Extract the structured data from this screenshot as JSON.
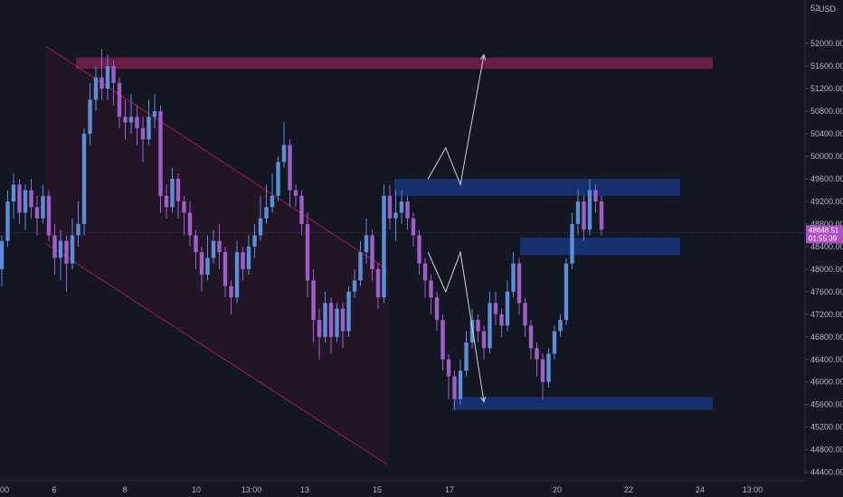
{
  "chart_data": {
    "type": "candlestick",
    "currency": "USD",
    "currency_prefix": "52",
    "y_range": [
      44250,
      52450
    ],
    "y_ticks": [
      "52000.00",
      "51600.00",
      "51200.00",
      "50800.00",
      "50400.00",
      "50000.00",
      "49600.00",
      "49200.00",
      "48800.00",
      "48400.00",
      "48000.00",
      "47600.00",
      "47200.00",
      "46800.00",
      "46400.00",
      "46000.00",
      "45600.00",
      "45200.00",
      "44800.00",
      "44400.00"
    ],
    "x_ticks": [
      "00",
      "6",
      "8",
      "10",
      "13:00",
      "13",
      "15",
      "17",
      "20",
      "22",
      "24",
      "13:00"
    ],
    "current_price": "48648.51",
    "countdown": "01:55:39",
    "colors": {
      "background": "#131722",
      "up": "#5b8fd8",
      "down": "#a05fc8",
      "channel": "#c2185b",
      "resistance_zone": "#7a1e4e",
      "demand_zone": "#1a3a8a",
      "price_tag": "#b04fc4"
    },
    "zones": [
      {
        "name": "resistance",
        "y_low": 51550,
        "y_high": 51750
      },
      {
        "name": "supply",
        "y_low": 49300,
        "y_high": 49600
      },
      {
        "name": "support",
        "y_low": 48250,
        "y_high": 48560
      },
      {
        "name": "demand",
        "y_low": 45510,
        "y_high": 45730
      }
    ],
    "candles": [
      [
        48000,
        48500,
        47700,
        48600
      ],
      [
        48500,
        49200,
        48400,
        49400
      ],
      [
        49200,
        49500,
        48900,
        49700
      ],
      [
        49500,
        49000,
        48800,
        49600
      ],
      [
        49000,
        49400,
        48700,
        49500
      ],
      [
        49400,
        49100,
        48900,
        49600
      ],
      [
        49100,
        48900,
        48600,
        49300
      ],
      [
        48900,
        49300,
        48800,
        49500
      ],
      [
        49300,
        48600,
        48500,
        49400
      ],
      [
        48600,
        48200,
        47900,
        48800
      ],
      [
        48200,
        48500,
        47800,
        48700
      ],
      [
        48500,
        48100,
        47600,
        48600
      ],
      [
        48100,
        48600,
        48000,
        48900
      ],
      [
        48600,
        48800,
        48400,
        49200
      ],
      [
        48800,
        50400,
        48600,
        50500
      ],
      [
        50400,
        51000,
        50200,
        51300
      ],
      [
        51000,
        51400,
        50800,
        51600
      ],
      [
        51400,
        51200,
        51000,
        51900
      ],
      [
        51200,
        51600,
        51000,
        51800
      ],
      [
        51600,
        51300,
        50900,
        51700
      ],
      [
        51300,
        50700,
        50500,
        51400
      ],
      [
        50700,
        50600,
        50300,
        51000
      ],
      [
        50600,
        50700,
        50400,
        51100
      ],
      [
        50700,
        50500,
        50200,
        50900
      ],
      [
        50500,
        50300,
        49900,
        50700
      ],
      [
        50300,
        50700,
        50200,
        51000
      ],
      [
        50700,
        50800,
        50500,
        51100
      ],
      [
        50800,
        49300,
        49000,
        50900
      ],
      [
        49300,
        49100,
        48900,
        49500
      ],
      [
        49100,
        49600,
        49000,
        49800
      ],
      [
        49600,
        49200,
        48900,
        49700
      ],
      [
        49200,
        49000,
        48600,
        49300
      ],
      [
        49000,
        48600,
        48400,
        49200
      ],
      [
        48600,
        48300,
        48000,
        48700
      ],
      [
        48300,
        47900,
        47600,
        48400
      ],
      [
        47900,
        48200,
        47800,
        48600
      ],
      [
        48200,
        48500,
        48100,
        48700
      ],
      [
        48500,
        48300,
        48000,
        48800
      ],
      [
        48300,
        47700,
        47500,
        48400
      ],
      [
        47700,
        47500,
        47200,
        47800
      ],
      [
        47500,
        48300,
        47400,
        48500
      ],
      [
        48300,
        48000,
        47800,
        48400
      ],
      [
        48000,
        48400,
        47900,
        48600
      ],
      [
        48400,
        48600,
        48200,
        48800
      ],
      [
        48600,
        48900,
        48500,
        49300
      ],
      [
        48900,
        49100,
        48800,
        49500
      ],
      [
        49100,
        49300,
        49000,
        49700
      ],
      [
        49300,
        49900,
        49200,
        50000
      ],
      [
        49900,
        50200,
        49800,
        50600
      ],
      [
        50200,
        49400,
        49100,
        50300
      ],
      [
        49400,
        49300,
        49100,
        49500
      ],
      [
        49300,
        48800,
        48600,
        49400
      ],
      [
        48800,
        47800,
        47500,
        49000
      ],
      [
        47800,
        47100,
        46700,
        48000
      ],
      [
        47100,
        46800,
        46400,
        47300
      ],
      [
        46800,
        47400,
        46700,
        47600
      ],
      [
        47400,
        46800,
        46500,
        47500
      ],
      [
        46800,
        47300,
        46700,
        47400
      ],
      [
        47300,
        46900,
        46600,
        47400
      ],
      [
        46900,
        47600,
        46800,
        47700
      ],
      [
        47600,
        47800,
        47500,
        48000
      ],
      [
        47800,
        48300,
        47700,
        48500
      ],
      [
        48300,
        48600,
        48100,
        48900
      ],
      [
        48600,
        48000,
        47800,
        48700
      ],
      [
        48000,
        47500,
        47300,
        48100
      ],
      [
        47500,
        49300,
        47400,
        49500
      ],
      [
        49300,
        48900,
        48700,
        49500
      ],
      [
        48900,
        49000,
        48500,
        49400
      ],
      [
        49000,
        49200,
        48800,
        49400
      ],
      [
        49200,
        48900,
        48700,
        49300
      ],
      [
        48900,
        48600,
        48400,
        49000
      ],
      [
        48600,
        48100,
        47900,
        48700
      ],
      [
        48100,
        47800,
        47500,
        48200
      ],
      [
        47800,
        47500,
        47200,
        47900
      ],
      [
        47500,
        47100,
        46900,
        47600
      ],
      [
        47100,
        46400,
        46200,
        47200
      ],
      [
        46400,
        46100,
        45700,
        46500
      ],
      [
        46100,
        45700,
        45500,
        46200
      ],
      [
        45700,
        46200,
        45600,
        46400
      ],
      [
        46200,
        46700,
        46100,
        46900
      ],
      [
        46700,
        47100,
        46600,
        47300
      ],
      [
        47100,
        46900,
        46700,
        47200
      ],
      [
        46900,
        46600,
        46400,
        47000
      ],
      [
        46600,
        47400,
        46500,
        47600
      ],
      [
        47400,
        47200,
        47000,
        47600
      ],
      [
        47200,
        47000,
        46800,
        47300
      ],
      [
        47000,
        47600,
        46900,
        47800
      ],
      [
        47600,
        48100,
        47500,
        48300
      ],
      [
        48100,
        47400,
        47200,
        48200
      ],
      [
        47400,
        47000,
        46800,
        47500
      ],
      [
        47000,
        46600,
        46400,
        47100
      ],
      [
        46600,
        46400,
        46100,
        46700
      ],
      [
        46400,
        46000,
        45700,
        46500
      ],
      [
        46000,
        46500,
        45900,
        46600
      ],
      [
        46500,
        46900,
        46400,
        47000
      ],
      [
        46900,
        47100,
        46800,
        47200
      ],
      [
        47100,
        48100,
        47000,
        48200
      ],
      [
        48100,
        48800,
        48000,
        49000
      ],
      [
        48800,
        49200,
        48600,
        49400
      ],
      [
        49200,
        48700,
        48500,
        49300
      ],
      [
        48700,
        49400,
        48600,
        49600
      ],
      [
        49400,
        49200,
        49000,
        49500
      ],
      [
        49200,
        48700,
        48600,
        49300
      ]
    ],
    "channel": {
      "upper": [
        [
          7.5,
          51950
        ],
        [
          65.5,
          48000
        ]
      ],
      "lower": [
        [
          7.5,
          48450
        ],
        [
          65.5,
          44540
        ]
      ],
      "fill_end_idx": 65.8
    },
    "projection_up": [
      [
        72.5,
        49600
      ],
      [
        75.5,
        50150
      ],
      [
        78,
        49500
      ],
      [
        82,
        51800
      ]
    ],
    "projection_down": [
      [
        72.5,
        48300
      ],
      [
        75.5,
        47600
      ],
      [
        78,
        48300
      ],
      [
        82,
        45650
      ]
    ]
  }
}
